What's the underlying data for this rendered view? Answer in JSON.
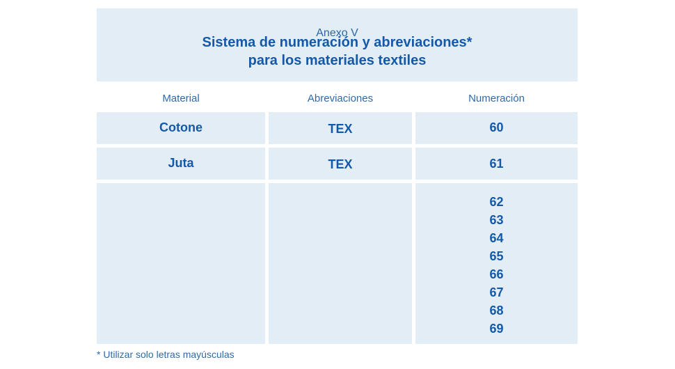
{
  "header": {
    "annex": "Anexo V",
    "title_line1": "Sistema de numeración y abreviaciones*",
    "title_line2": "para los materiales textiles"
  },
  "table": {
    "columns": [
      "Material",
      "Abreviaciones",
      "Numeración"
    ],
    "rows": [
      {
        "material": "Cotone",
        "abbr": "TEX",
        "numbers": [
          "60"
        ]
      },
      {
        "material": "Juta",
        "abbr": "TEX",
        "numbers": [
          "61"
        ]
      },
      {
        "material": "",
        "abbr": "",
        "numbers": [
          "62",
          "63",
          "64",
          "65",
          "66",
          "67",
          "68",
          "69"
        ]
      }
    ]
  },
  "footnote": "* Utilizar solo letras mayúsculas",
  "colors": {
    "cell_background": "#e2edf6",
    "heading_text": "#1459a8",
    "body_text": "#2f6aa8"
  }
}
